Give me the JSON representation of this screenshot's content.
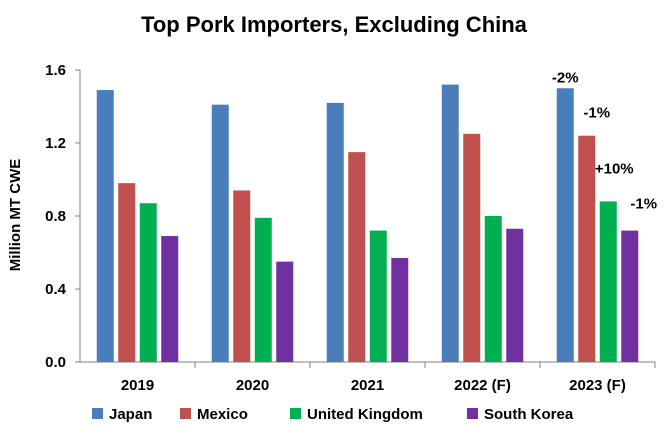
{
  "chart_data": {
    "type": "bar",
    "title": "Top Pork Importers, Excluding China",
    "ylabel": "Million MT CWE",
    "xlabel": "",
    "categories": [
      "2019",
      "2020",
      "2021",
      "2022 (F)",
      "2023 (F)"
    ],
    "ylim": [
      0.0,
      1.6
    ],
    "yticks": [
      "0.0",
      "0.4",
      "0.8",
      "1.2",
      "1.6"
    ],
    "ytick_values": [
      0.0,
      0.4,
      0.8,
      1.2,
      1.6
    ],
    "grid": false,
    "legend_position": "bottom",
    "series": [
      {
        "name": "Japan",
        "color": "#4a7ebb",
        "values": [
          1.49,
          1.41,
          1.42,
          1.52,
          1.5
        ]
      },
      {
        "name": "Mexico",
        "color": "#c0504d",
        "values": [
          0.98,
          0.94,
          1.15,
          1.25,
          1.24
        ]
      },
      {
        "name": "United Kingdom",
        "color": "#00b050",
        "values": [
          0.87,
          0.79,
          0.72,
          0.8,
          0.88
        ]
      },
      {
        "name": "South Korea",
        "color": "#7030a0",
        "values": [
          0.69,
          0.55,
          0.57,
          0.73,
          0.72
        ]
      }
    ],
    "annotations": [
      {
        "category": "2023 (F)",
        "series": "Japan",
        "text": "-2%"
      },
      {
        "category": "2023 (F)",
        "series": "Mexico",
        "text": "-1%"
      },
      {
        "category": "2023 (F)",
        "series": "United Kingdom",
        "text": "+10%"
      },
      {
        "category": "2023 (F)",
        "series": "South Korea",
        "text": "-1%"
      }
    ]
  }
}
